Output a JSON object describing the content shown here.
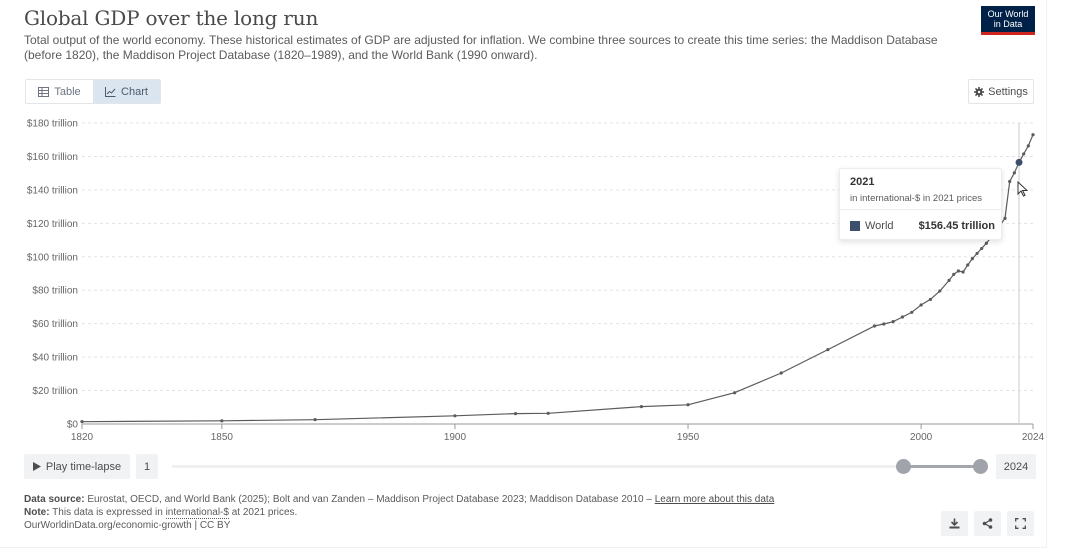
{
  "header": {
    "title": "Global GDP over the long run",
    "subtitle": "Total output of the world economy. These historical estimates of GDP are adjusted for inflation. We combine three sources to create this time series: the Maddison Database (before 1820), the Maddison Project Database (1820–1989), and the World Bank (1990 onward).",
    "logo_line1": "Our World",
    "logo_line2": "in Data"
  },
  "tabs": {
    "table_label": "Table",
    "chart_label": "Chart"
  },
  "settings_label": "Settings",
  "tooltip": {
    "year": "2021",
    "unit": "in international-$ in 2021 prices",
    "series": "World",
    "value": "$156.45 trillion"
  },
  "timeline": {
    "play_label": "Play time-lapse",
    "start_label": "1",
    "end_label": "2024",
    "range_start_fraction": 0.905,
    "range_end_fraction": 1.0
  },
  "footer": {
    "source_label": "Data source:",
    "source_text": "Eurostat, OECD, and World Bank (2025); Bolt and van Zanden – Maddison Project Database 2023; Maddison Database 2010 –",
    "learn_more": "Learn more about this data",
    "note_label": "Note:",
    "note_pre": "This data is expressed in",
    "note_term": "international-$",
    "note_post": "at 2021 prices.",
    "url": "OurWorldinData.org/economic-growth | CC BY"
  },
  "colors": {
    "line": "#5b5b5b",
    "accent": "#3d4f6d",
    "logo_bg": "#002147",
    "logo_red": "#ce261e"
  },
  "chart_data": {
    "type": "line",
    "title": "Global GDP over the long run",
    "ylabel": "",
    "xlabel": "",
    "x_ticks": [
      1820,
      1850,
      1900,
      1950,
      2000,
      2024
    ],
    "y_ticks": [
      0,
      20,
      40,
      60,
      80,
      100,
      120,
      140,
      160,
      180
    ],
    "y_tick_labels": [
      "$0",
      "$20 trillion",
      "$40 trillion",
      "$60 trillion",
      "$80 trillion",
      "$100 trillion",
      "$120 trillion",
      "$140 trillion",
      "$160 trillion",
      "$180 trillion"
    ],
    "xlim": [
      1820,
      2024
    ],
    "ylim": [
      0,
      180
    ],
    "highlight_year": 2021,
    "series": [
      {
        "name": "World",
        "points": [
          [
            1820,
            1.4
          ],
          [
            1850,
            1.9
          ],
          [
            1870,
            2.6
          ],
          [
            1900,
            4.9
          ],
          [
            1913,
            6.2
          ],
          [
            1920,
            6.4
          ],
          [
            1940,
            10.4
          ],
          [
            1950,
            11.5
          ],
          [
            1960,
            18.7
          ],
          [
            1970,
            30.5
          ],
          [
            1980,
            44.5
          ],
          [
            1990,
            58.6
          ],
          [
            1992,
            59.8
          ],
          [
            1994,
            61.2
          ],
          [
            1996,
            64.0
          ],
          [
            1998,
            66.8
          ],
          [
            2000,
            71.2
          ],
          [
            2002,
            74.5
          ],
          [
            2004,
            79.5
          ],
          [
            2006,
            85.9
          ],
          [
            2007,
            89.5
          ],
          [
            2008,
            91.5
          ],
          [
            2009,
            90.9
          ],
          [
            2010,
            95.1
          ],
          [
            2011,
            98.9
          ],
          [
            2012,
            102.0
          ],
          [
            2013,
            105.0
          ],
          [
            2014,
            108.1
          ],
          [
            2015,
            111.6
          ],
          [
            2016,
            115.3
          ],
          [
            2017,
            119.2
          ],
          [
            2018,
            123.0
          ],
          [
            2019,
            145.0
          ],
          [
            2020,
            150.2
          ],
          [
            2021,
            156.45
          ],
          [
            2022,
            161.5
          ],
          [
            2023,
            166.3
          ],
          [
            2024,
            173.0
          ]
        ]
      }
    ]
  }
}
